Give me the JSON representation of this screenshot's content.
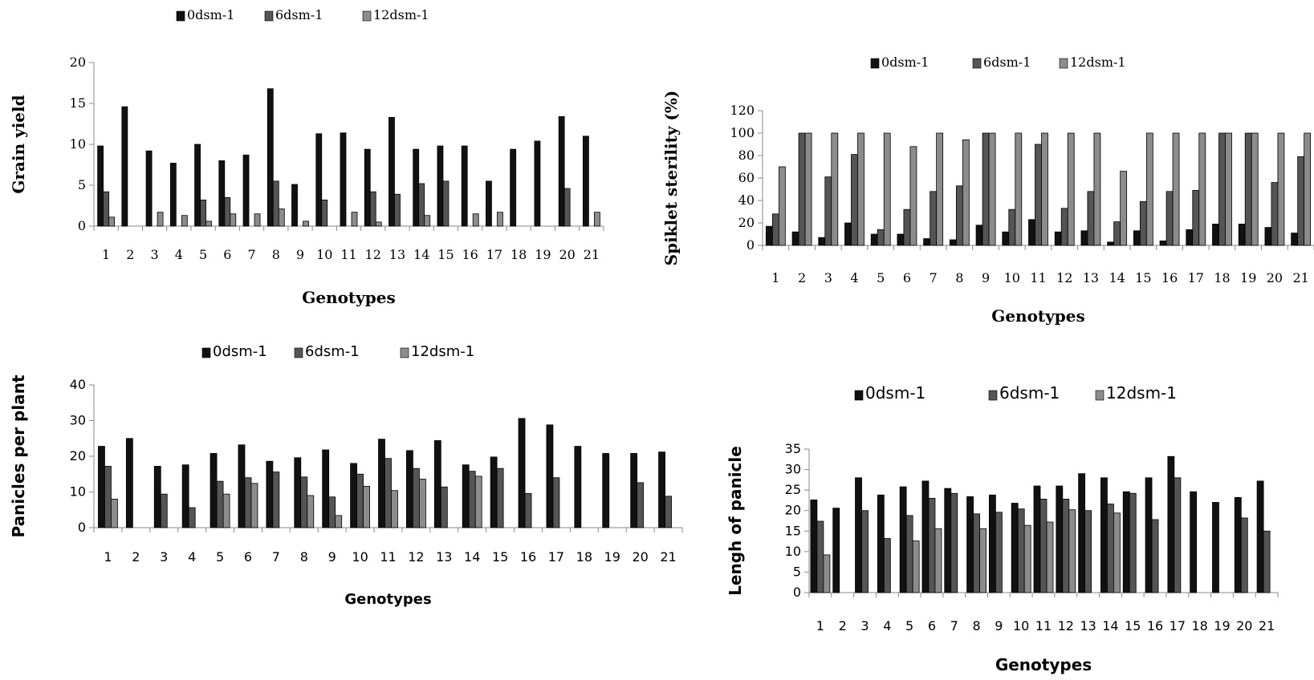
{
  "colors": {
    "s0": "#111111",
    "s6": "#555555",
    "s12": "#8c8c8c",
    "axis": "#8a8a8a"
  },
  "chart_data": [
    {
      "type": "bar",
      "xlabel": "Genotypes",
      "ylabel": "Grain yield",
      "ylim": [
        0,
        20
      ],
      "yticks": [
        "0",
        "5",
        "10",
        "15",
        "20"
      ],
      "legend_position": "top",
      "categories": [
        "1",
        "2",
        "3",
        "4",
        "5",
        "6",
        "7",
        "8",
        "9",
        "10",
        "11",
        "12",
        "13",
        "14",
        "15",
        "16",
        "17",
        "18",
        "19",
        "20",
        "21"
      ],
      "series": [
        {
          "name": "0dsm-1",
          "values": [
            9.8,
            14.6,
            9.2,
            7.7,
            10.0,
            8.0,
            8.7,
            16.8,
            5.1,
            11.3,
            11.4,
            9.4,
            13.3,
            9.4,
            9.8,
            9.8,
            5.5,
            9.4,
            10.4,
            13.4,
            11.0
          ]
        },
        {
          "name": "6dsm-1",
          "values": [
            4.2,
            0,
            0,
            0,
            3.2,
            3.5,
            0,
            5.5,
            0,
            3.2,
            0,
            4.2,
            3.9,
            5.2,
            5.5,
            0,
            0,
            0,
            0,
            4.6,
            0
          ]
        },
        {
          "name": "12dsm-1",
          "values": [
            1.1,
            0,
            1.7,
            1.3,
            0.6,
            1.5,
            1.5,
            2.1,
            0.6,
            0,
            1.7,
            0.5,
            0,
            1.3,
            0,
            1.5,
            1.7,
            0,
            0,
            0,
            1.7
          ]
        }
      ]
    },
    {
      "type": "bar",
      "xlabel": "Genotypes",
      "ylabel": "Spiklet sterility (%)",
      "ylim": [
        0,
        120
      ],
      "yticks": [
        "0",
        "20",
        "40",
        "60",
        "80",
        "100",
        "120"
      ],
      "legend_position": "top",
      "categories": [
        "1",
        "2",
        "3",
        "4",
        "5",
        "6",
        "7",
        "8",
        "9",
        "10",
        "11",
        "12",
        "13",
        "14",
        "15",
        "16",
        "17",
        "18",
        "19",
        "20",
        "21"
      ],
      "series": [
        {
          "name": "0dsm-1",
          "values": [
            17,
            12,
            7,
            20,
            10,
            10,
            6,
            5,
            18,
            12,
            23,
            12,
            13,
            3,
            13,
            4,
            14,
            19,
            19,
            16,
            11
          ]
        },
        {
          "name": "6dsm-1",
          "values": [
            28,
            100,
            61,
            81,
            14,
            32,
            48,
            53,
            100,
            32,
            90,
            33,
            48,
            21,
            39,
            48,
            49,
            100,
            100,
            56,
            79
          ]
        },
        {
          "name": "12dsm-1",
          "values": [
            70,
            100,
            100,
            100,
            100,
            88,
            100,
            94,
            100,
            100,
            100,
            100,
            100,
            66,
            100,
            100,
            100,
            100,
            100,
            100,
            100
          ]
        }
      ]
    },
    {
      "type": "bar",
      "xlabel": "Genotypes",
      "ylabel": "Panicles per plant",
      "ylim": [
        0,
        40
      ],
      "yticks": [
        "0",
        "10",
        "20",
        "30",
        "40"
      ],
      "legend_position": "top",
      "categories": [
        "1",
        "2",
        "3",
        "4",
        "5",
        "6",
        "7",
        "8",
        "9",
        "10",
        "11",
        "12",
        "13",
        "14",
        "15",
        "16",
        "17",
        "18",
        "19",
        "20",
        "21"
      ],
      "series": [
        {
          "name": "0dsm-1",
          "values": [
            22.8,
            25.0,
            17.2,
            17.6,
            20.8,
            23.2,
            18.6,
            19.6,
            21.8,
            18.0,
            24.8,
            21.6,
            24.4,
            17.6,
            19.8,
            30.6,
            28.8,
            22.8,
            20.8,
            20.8,
            21.2
          ]
        },
        {
          "name": "6dsm-1",
          "values": [
            17.2,
            0,
            9.4,
            5.6,
            13.0,
            14.0,
            15.6,
            14.2,
            8.6,
            15.0,
            19.4,
            16.6,
            11.4,
            15.8,
            16.6,
            9.6,
            14.0,
            0,
            0,
            12.6,
            8.8
          ]
        },
        {
          "name": "12dsm-1",
          "values": [
            8.0,
            0,
            0,
            0,
            9.4,
            12.4,
            0,
            9.0,
            3.4,
            11.6,
            10.4,
            13.6,
            0,
            14.4,
            0,
            0,
            0,
            0,
            0,
            0,
            0
          ]
        }
      ]
    },
    {
      "type": "bar",
      "xlabel": "Genotypes",
      "ylabel": "Lengh of panicle",
      "ylim": [
        0,
        35
      ],
      "yticks": [
        "0",
        "5",
        "10",
        "15",
        "20",
        "25",
        "30",
        "35"
      ],
      "legend_position": "top",
      "categories": [
        "1",
        "2",
        "3",
        "4",
        "5",
        "6",
        "7",
        "8",
        "9",
        "10",
        "11",
        "12",
        "13",
        "14",
        "15",
        "16",
        "17",
        "18",
        "19",
        "20",
        "21"
      ],
      "series": [
        {
          "name": "0dsm-1",
          "values": [
            22.6,
            20.6,
            28.0,
            23.8,
            25.8,
            27.2,
            25.4,
            23.4,
            23.8,
            21.8,
            26.0,
            26.0,
            29.0,
            28.0,
            24.6,
            28.0,
            33.2,
            24.6,
            22.0,
            23.2,
            27.2
          ]
        },
        {
          "name": "6dsm-1",
          "values": [
            17.4,
            0,
            20.0,
            13.2,
            18.8,
            23.0,
            24.2,
            19.2,
            19.6,
            20.4,
            22.8,
            22.8,
            20.0,
            21.6,
            24.2,
            17.8,
            28.0,
            0,
            0,
            18.2,
            15.0
          ]
        },
        {
          "name": "12dsm-1",
          "values": [
            9.2,
            0,
            0,
            0,
            12.6,
            15.6,
            0,
            15.6,
            0,
            16.4,
            17.2,
            20.2,
            0,
            19.4,
            0,
            0,
            0,
            0,
            0,
            0,
            0
          ]
        }
      ]
    }
  ]
}
